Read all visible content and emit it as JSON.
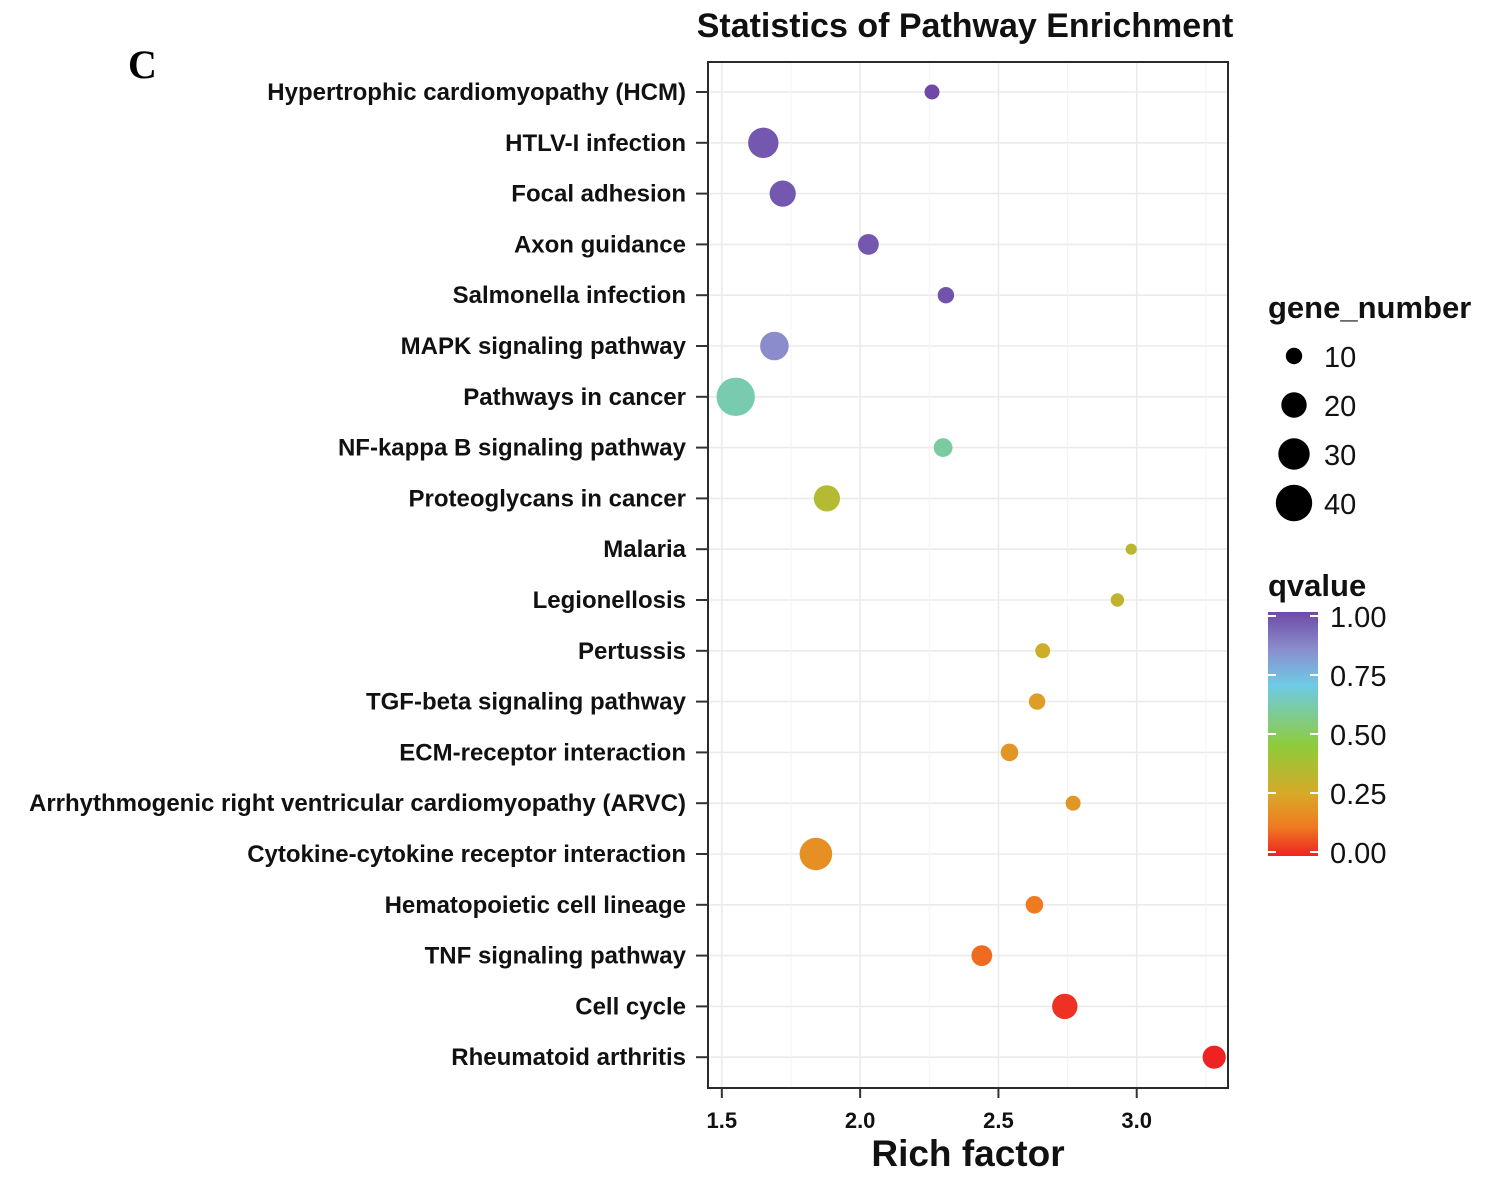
{
  "panel_label": "C",
  "chart_data": {
    "type": "scatter",
    "title": "Statistics of Pathway Enrichment",
    "xlabel": "Rich factor",
    "ylabel": "",
    "xlim": [
      1.5,
      3.35
    ],
    "x_ticks": [
      1.5,
      2.0,
      2.5,
      3.0
    ],
    "x_tick_labels": [
      "1.5",
      "2.0",
      "2.5",
      "3.0"
    ],
    "grid": true,
    "categories": [
      "Hypertrophic cardiomyopathy (HCM)",
      "HTLV-I infection",
      "Focal adhesion",
      "Axon guidance",
      "Salmonella infection",
      "MAPK signaling pathway",
      "Pathways in cancer",
      "NF-kappa B signaling pathway",
      "Proteoglycans in cancer",
      "Malaria",
      "Legionellosis",
      "Pertussis",
      "TGF-beta signaling pathway",
      "ECM-receptor interaction",
      "Arrhythmogenic right ventricular cardiomyopathy (ARVC)",
      "Cytokine-cytokine receptor interaction",
      "Hematopoietic cell lineage",
      "TNF signaling pathway",
      "Cell cycle",
      "Rheumatoid arthritis"
    ],
    "rich_factor": [
      2.26,
      1.65,
      1.72,
      2.03,
      2.31,
      1.69,
      1.55,
      2.3,
      1.88,
      2.98,
      2.93,
      2.66,
      2.64,
      2.54,
      2.77,
      1.84,
      2.63,
      2.44,
      2.74,
      3.28
    ],
    "gene_number": [
      9,
      28,
      21,
      14,
      10,
      25,
      45,
      12,
      21,
      7,
      8,
      9,
      10,
      11,
      9,
      32,
      11,
      14,
      20,
      17
    ],
    "qvalue": [
      1.0,
      0.97,
      0.97,
      0.97,
      0.98,
      0.85,
      0.62,
      0.6,
      0.35,
      0.33,
      0.32,
      0.28,
      0.22,
      0.2,
      0.2,
      0.18,
      0.12,
      0.1,
      0.02,
      0.0
    ],
    "size_legend": {
      "title": "gene_number",
      "values": [
        10,
        20,
        30,
        40
      ],
      "labels": [
        "10",
        "20",
        "30",
        "40"
      ]
    },
    "color_legend": {
      "title": "qvalue",
      "range": [
        0.0,
        1.0
      ],
      "ticks": [
        1.0,
        0.75,
        0.5,
        0.25,
        0.0
      ],
      "tick_labels": [
        "1.00",
        "0.75",
        "0.50",
        "0.25",
        "0.00"
      ],
      "colors_low_to_high": [
        "#ee2222",
        "#ef7a20",
        "#d9a828",
        "#8fcb3a",
        "#6ecbe6",
        "#8a8ccc",
        "#6e4aa6"
      ]
    }
  }
}
